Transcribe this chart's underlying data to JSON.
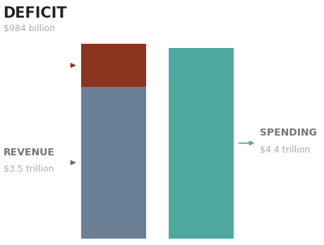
{
  "revenue": 3.5,
  "deficit": 0.984,
  "spending": 4.4,
  "revenue_color": "#6b7f96",
  "deficit_color": "#8b3520",
  "spending_color": "#4da8a0",
  "arrow_deficit_color": "#8b3520",
  "arrow_revenue_color": "#5a7090",
  "arrow_spending_color": "#4da8a0",
  "bg_color": "#ffffff",
  "deficit_label": "DEFICIT",
  "deficit_sublabel": "$984 billion",
  "revenue_label": "REVENUE",
  "revenue_sublabel": "$3.5 trillion",
  "spending_label": "SPENDING",
  "spending_sublabel": "$4.4 trillion",
  "label_color_dark": "#777777",
  "label_color_black": "#222222",
  "label_color_light": "#aaaaaa",
  "fig_width": 4.6,
  "fig_height": 3.47,
  "dpi": 100
}
